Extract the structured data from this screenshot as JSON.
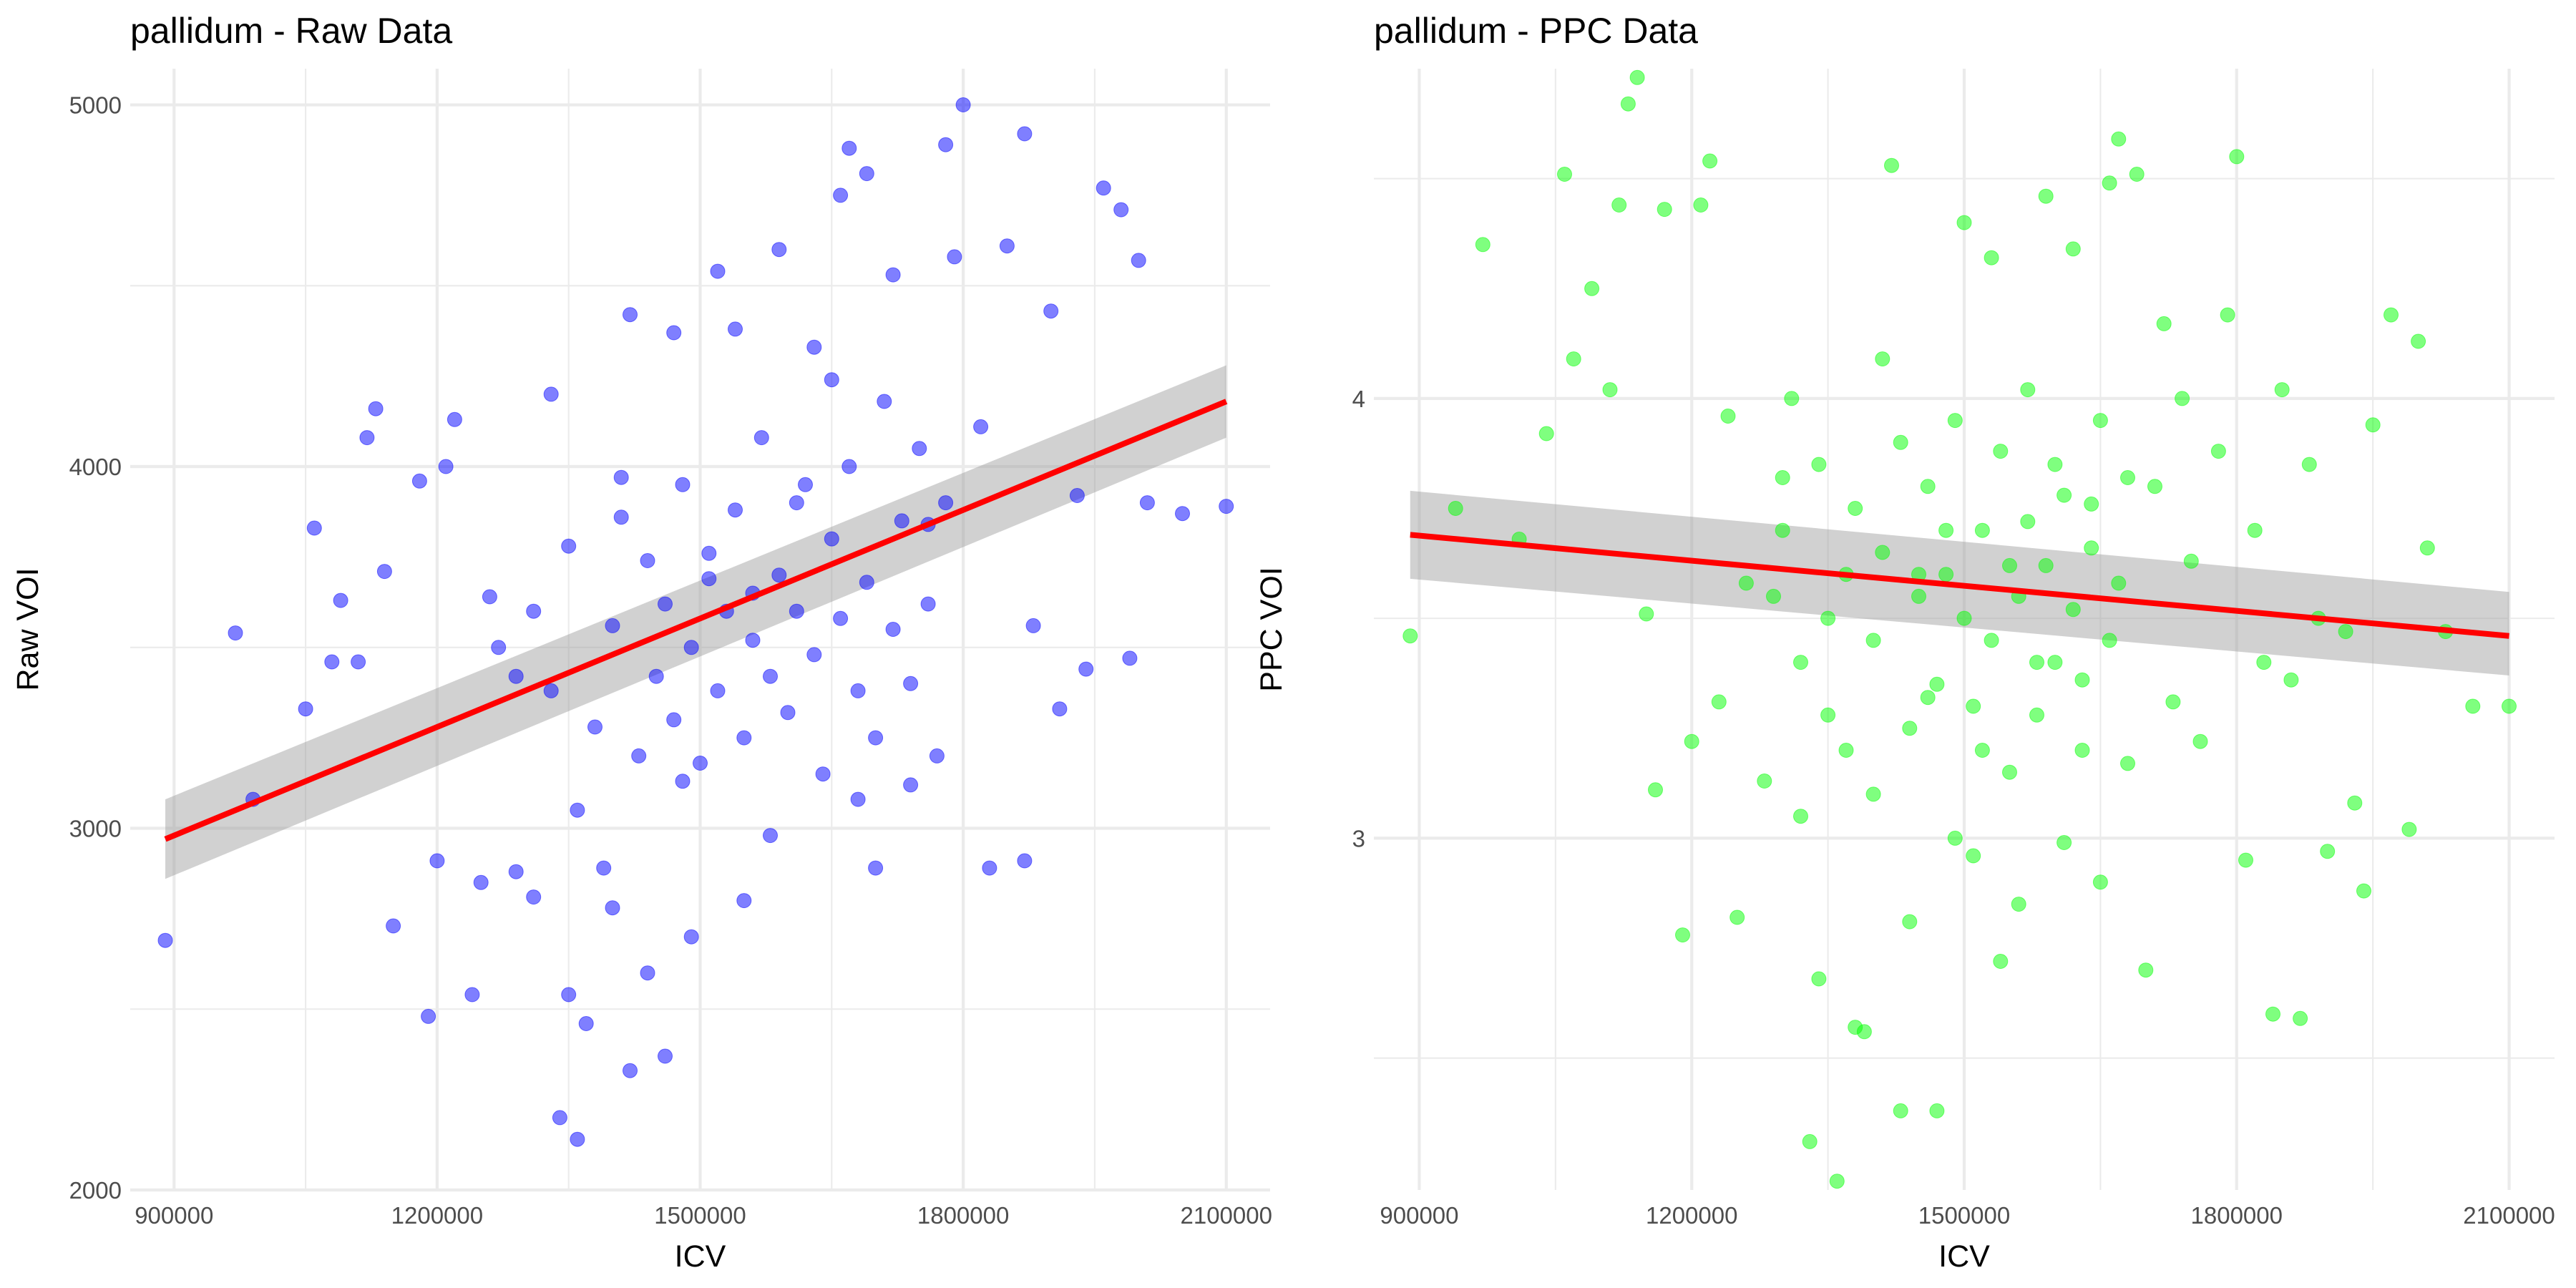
{
  "chart_data": [
    {
      "type": "scatter",
      "title": "pallidum - Raw Data",
      "xlabel": "ICV",
      "ylabel": "Raw VOI",
      "xlim": [
        850000,
        2150000
      ],
      "ylim": [
        2000,
        5100
      ],
      "x_ticks": [
        900000,
        1200000,
        1500000,
        1800000,
        2100000
      ],
      "x_tick_labels": [
        "900000",
        "1200000",
        "1500000",
        "1800000",
        "2100000"
      ],
      "y_ticks": [
        2000,
        3000,
        4000,
        5000
      ],
      "y_tick_labels": [
        "2000",
        "3000",
        "4000",
        "5000"
      ],
      "grid": true,
      "legend": "none",
      "point_color": "#0000ff",
      "point_alpha": 0.5,
      "fit": {
        "method": "linear",
        "color": "#ff0000",
        "x": [
          890000,
          2100000
        ],
        "y": [
          2970,
          4180
        ],
        "ci_lower": [
          2860,
          4080
        ],
        "ci_upper": [
          3080,
          4280
        ],
        "ci_color": "#999999"
      },
      "points": [
        [
          890000,
          2690
        ],
        [
          970000,
          3540
        ],
        [
          990000,
          3080
        ],
        [
          1050000,
          3330
        ],
        [
          1060000,
          3830
        ],
        [
          1080000,
          3460
        ],
        [
          1090000,
          3630
        ],
        [
          1110000,
          3460
        ],
        [
          1120000,
          4080
        ],
        [
          1130000,
          4160
        ],
        [
          1140000,
          3710
        ],
        [
          1150000,
          2730
        ],
        [
          1180000,
          3960
        ],
        [
          1190000,
          2480
        ],
        [
          1200000,
          2910
        ],
        [
          1210000,
          4000
        ],
        [
          1220000,
          4130
        ],
        [
          1240000,
          2540
        ],
        [
          1250000,
          2850
        ],
        [
          1260000,
          3640
        ],
        [
          1290000,
          2880
        ],
        [
          1310000,
          2810
        ],
        [
          1330000,
          4200
        ],
        [
          1340000,
          2200
        ],
        [
          1350000,
          2540
        ],
        [
          1360000,
          2140
        ],
        [
          1370000,
          2460
        ],
        [
          1390000,
          2890
        ],
        [
          1400000,
          2780
        ],
        [
          1410000,
          3970
        ],
        [
          1420000,
          4420
        ],
        [
          1420000,
          2330
        ],
        [
          1440000,
          2600
        ],
        [
          1460000,
          2370
        ],
        [
          1470000,
          4370
        ],
        [
          1480000,
          3130
        ],
        [
          1490000,
          2700
        ],
        [
          1510000,
          3690
        ],
        [
          1520000,
          4540
        ],
        [
          1540000,
          4380
        ],
        [
          1550000,
          2800
        ],
        [
          1560000,
          3650
        ],
        [
          1580000,
          2980
        ],
        [
          1590000,
          4600
        ],
        [
          1610000,
          3900
        ],
        [
          1630000,
          4330
        ],
        [
          1650000,
          4240
        ],
        [
          1660000,
          4750
        ],
        [
          1670000,
          4880
        ],
        [
          1680000,
          3080
        ],
        [
          1690000,
          4810
        ],
        [
          1700000,
          2890
        ],
        [
          1720000,
          4530
        ],
        [
          1740000,
          3120
        ],
        [
          1760000,
          3840
        ],
        [
          1780000,
          4890
        ],
        [
          1790000,
          4580
        ],
        [
          1800000,
          5000
        ],
        [
          1820000,
          4110
        ],
        [
          1830000,
          2890
        ],
        [
          1850000,
          4610
        ],
        [
          1870000,
          4920
        ],
        [
          1870000,
          2910
        ],
        [
          1880000,
          3560
        ],
        [
          1900000,
          4430
        ],
        [
          1910000,
          3330
        ],
        [
          1930000,
          3920
        ],
        [
          1940000,
          3440
        ],
        [
          1960000,
          4770
        ],
        [
          1980000,
          4710
        ],
        [
          1990000,
          3470
        ],
        [
          2000000,
          4570
        ],
        [
          2010000,
          3900
        ],
        [
          2050000,
          3870
        ],
        [
          2100000,
          3890
        ],
        [
          1270000,
          3500
        ],
        [
          1290000,
          3420
        ],
        [
          1310000,
          3600
        ],
        [
          1330000,
          3380
        ],
        [
          1350000,
          3780
        ],
        [
          1360000,
          3050
        ],
        [
          1380000,
          3280
        ],
        [
          1400000,
          3560
        ],
        [
          1410000,
          3860
        ],
        [
          1430000,
          3200
        ],
        [
          1440000,
          3740
        ],
        [
          1450000,
          3420
        ],
        [
          1460000,
          3620
        ],
        [
          1470000,
          3300
        ],
        [
          1480000,
          3950
        ],
        [
          1490000,
          3500
        ],
        [
          1500000,
          3180
        ],
        [
          1510000,
          3760
        ],
        [
          1520000,
          3380
        ],
        [
          1530000,
          3600
        ],
        [
          1540000,
          3880
        ],
        [
          1550000,
          3250
        ],
        [
          1560000,
          3520
        ],
        [
          1570000,
          4080
        ],
        [
          1580000,
          3420
        ],
        [
          1590000,
          3700
        ],
        [
          1600000,
          3320
        ],
        [
          1610000,
          3600
        ],
        [
          1620000,
          3950
        ],
        [
          1630000,
          3480
        ],
        [
          1640000,
          3150
        ],
        [
          1650000,
          3800
        ],
        [
          1660000,
          3580
        ],
        [
          1670000,
          4000
        ],
        [
          1680000,
          3380
        ],
        [
          1690000,
          3680
        ],
        [
          1700000,
          3250
        ],
        [
          1710000,
          4180
        ],
        [
          1720000,
          3550
        ],
        [
          1730000,
          3850
        ],
        [
          1740000,
          3400
        ],
        [
          1750000,
          4050
        ],
        [
          1760000,
          3620
        ],
        [
          1770000,
          3200
        ],
        [
          1780000,
          3900
        ]
      ]
    },
    {
      "type": "scatter",
      "title": "pallidum - PPC Data",
      "xlabel": "ICV",
      "ylabel": "PPC VOI",
      "xlim": [
        850000,
        2150000
      ],
      "ylim": [
        2.2,
        4.75
      ],
      "x_ticks": [
        900000,
        1200000,
        1500000,
        1800000,
        2100000
      ],
      "x_tick_labels": [
        "900000",
        "1200000",
        "1500000",
        "1800000",
        "2100000"
      ],
      "y_ticks": [
        3,
        4
      ],
      "y_tick_labels": [
        "3",
        "4"
      ],
      "grid": true,
      "legend": "none",
      "point_color": "#00ff00",
      "point_alpha": 0.5,
      "fit": {
        "method": "linear",
        "color": "#ff0000",
        "x": [
          890000,
          2100000
        ],
        "y": [
          3.69,
          3.46
        ],
        "ci_lower": [
          3.59,
          3.37
        ],
        "ci_upper": [
          3.79,
          3.56
        ],
        "ci_color": "#999999"
      },
      "points": [
        [
          890000,
          3.46
        ],
        [
          940000,
          3.75
        ],
        [
          970000,
          4.35
        ],
        [
          1010000,
          3.68
        ],
        [
          1040000,
          3.92
        ],
        [
          1060000,
          4.51
        ],
        [
          1070000,
          4.09
        ],
        [
          1090000,
          4.25
        ],
        [
          1110000,
          4.02
        ],
        [
          1120000,
          4.44
        ],
        [
          1130000,
          4.67
        ],
        [
          1140000,
          4.73
        ],
        [
          1150000,
          3.51
        ],
        [
          1160000,
          3.11
        ],
        [
          1170000,
          4.43
        ],
        [
          1190000,
          2.78
        ],
        [
          1200000,
          3.22
        ],
        [
          1210000,
          4.44
        ],
        [
          1220000,
          4.54
        ],
        [
          1230000,
          3.31
        ],
        [
          1240000,
          3.96
        ],
        [
          1250000,
          2.82
        ],
        [
          1260000,
          3.58
        ],
        [
          1280000,
          3.13
        ],
        [
          1300000,
          3.82
        ],
        [
          1310000,
          4.0
        ],
        [
          1320000,
          3.05
        ],
        [
          1330000,
          2.31
        ],
        [
          1340000,
          2.68
        ],
        [
          1350000,
          3.28
        ],
        [
          1360000,
          2.22
        ],
        [
          1370000,
          3.6
        ],
        [
          1380000,
          2.57
        ],
        [
          1390000,
          2.56
        ],
        [
          1400000,
          3.1
        ],
        [
          1410000,
          4.09
        ],
        [
          1420000,
          4.53
        ],
        [
          1430000,
          2.38
        ],
        [
          1440000,
          2.81
        ],
        [
          1450000,
          3.6
        ],
        [
          1460000,
          3.32
        ],
        [
          1470000,
          2.38
        ],
        [
          1480000,
          3.7
        ],
        [
          1490000,
          3.0
        ],
        [
          1500000,
          4.4
        ],
        [
          1510000,
          2.96
        ],
        [
          1520000,
          3.2
        ],
        [
          1530000,
          4.32
        ],
        [
          1540000,
          2.72
        ],
        [
          1550000,
          3.62
        ],
        [
          1560000,
          2.85
        ],
        [
          1570000,
          4.02
        ],
        [
          1580000,
          3.4
        ],
        [
          1590000,
          4.46
        ],
        [
          1600000,
          3.85
        ],
        [
          1610000,
          2.99
        ],
        [
          1620000,
          4.34
        ],
        [
          1630000,
          3.36
        ],
        [
          1640000,
          3.76
        ],
        [
          1650000,
          2.9
        ],
        [
          1660000,
          4.49
        ],
        [
          1670000,
          4.59
        ],
        [
          1680000,
          3.17
        ],
        [
          1690000,
          4.51
        ],
        [
          1700000,
          2.7
        ],
        [
          1710000,
          3.8
        ],
        [
          1720000,
          4.17
        ],
        [
          1730000,
          3.31
        ],
        [
          1740000,
          4.0
        ],
        [
          1750000,
          3.63
        ],
        [
          1760000,
          3.22
        ],
        [
          1780000,
          3.88
        ],
        [
          1790000,
          4.19
        ],
        [
          1800000,
          4.55
        ],
        [
          1810000,
          2.95
        ],
        [
          1820000,
          3.7
        ],
        [
          1830000,
          3.4
        ],
        [
          1840000,
          2.6
        ],
        [
          1850000,
          4.02
        ],
        [
          1860000,
          3.36
        ],
        [
          1870000,
          2.59
        ],
        [
          1880000,
          3.85
        ],
        [
          1890000,
          3.5
        ],
        [
          1900000,
          2.97
        ],
        [
          1920000,
          3.47
        ],
        [
          1930000,
          3.08
        ],
        [
          1940000,
          2.88
        ],
        [
          1950000,
          3.94
        ],
        [
          1970000,
          4.19
        ],
        [
          1990000,
          3.02
        ],
        [
          2000000,
          4.13
        ],
        [
          2010000,
          3.66
        ],
        [
          2030000,
          3.47
        ],
        [
          2060000,
          3.3
        ],
        [
          2100000,
          3.3
        ],
        [
          1290000,
          3.55
        ],
        [
          1300000,
          3.7
        ],
        [
          1320000,
          3.4
        ],
        [
          1340000,
          3.85
        ],
        [
          1350000,
          3.5
        ],
        [
          1370000,
          3.2
        ],
        [
          1380000,
          3.75
        ],
        [
          1400000,
          3.45
        ],
        [
          1410000,
          3.65
        ],
        [
          1430000,
          3.9
        ],
        [
          1440000,
          3.25
        ],
        [
          1450000,
          3.55
        ],
        [
          1460000,
          3.8
        ],
        [
          1470000,
          3.35
        ],
        [
          1480000,
          3.6
        ],
        [
          1490000,
          3.95
        ],
        [
          1500000,
          3.5
        ],
        [
          1510000,
          3.3
        ],
        [
          1520000,
          3.7
        ],
        [
          1530000,
          3.45
        ],
        [
          1540000,
          3.88
        ],
        [
          1550000,
          3.15
        ],
        [
          1560000,
          3.55
        ],
        [
          1570000,
          3.72
        ],
        [
          1580000,
          3.28
        ],
        [
          1590000,
          3.62
        ],
        [
          1600000,
          3.4
        ],
        [
          1610000,
          3.78
        ],
        [
          1620000,
          3.52
        ],
        [
          1630000,
          3.2
        ],
        [
          1640000,
          3.66
        ],
        [
          1650000,
          3.95
        ],
        [
          1660000,
          3.45
        ],
        [
          1670000,
          3.58
        ],
        [
          1680000,
          3.82
        ]
      ]
    }
  ]
}
